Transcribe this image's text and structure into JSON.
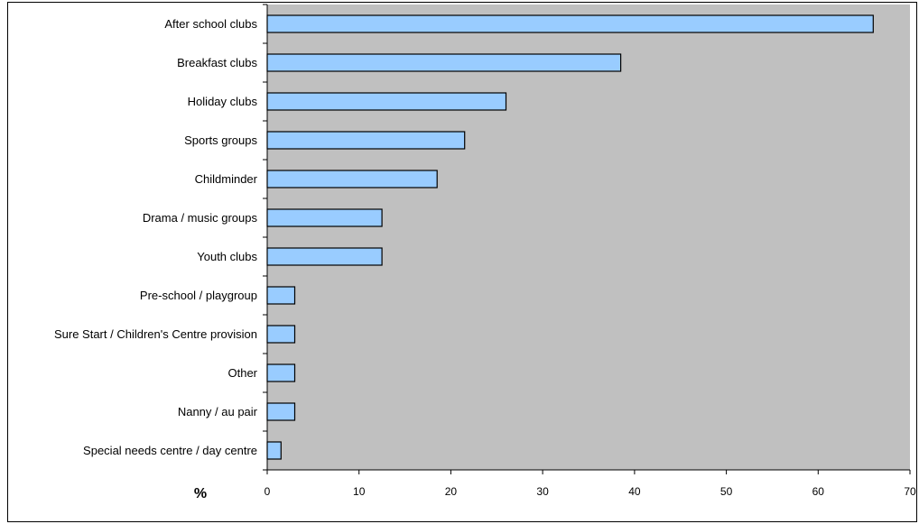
{
  "chart_data": {
    "type": "bar",
    "orientation": "horizontal",
    "categories": [
      "After school clubs",
      "Breakfast clubs",
      "Holiday clubs",
      "Sports groups",
      "Childminder",
      "Drama / music groups",
      "Youth clubs",
      "Pre-school / playgroup",
      "Sure Start / Children's Centre provision",
      "Other",
      "Nanny / au pair",
      "Special needs centre / day centre"
    ],
    "values": [
      66,
      38.5,
      26,
      21.5,
      18.5,
      12.5,
      12.5,
      3,
      3,
      3,
      3,
      1.5
    ],
    "title": "",
    "xlabel": "%",
    "ylabel": "",
    "xlim": [
      0,
      70
    ],
    "x_ticks": [
      0,
      10,
      20,
      30,
      40,
      50,
      60,
      70
    ],
    "grid": false,
    "legend": "none",
    "colors": {
      "plot_background": "#c0c0c0",
      "bar_fill": "#99ccff",
      "bar_stroke": "#000000"
    }
  }
}
